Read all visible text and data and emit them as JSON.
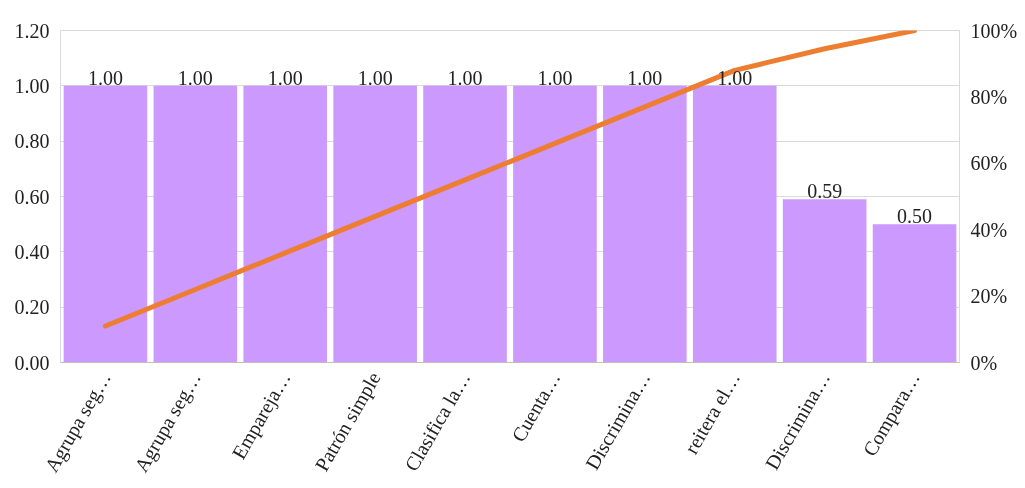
{
  "chart_data": {
    "type": "bar",
    "categories": [
      "Agrupa seg…",
      "Agrupa seg…",
      "Empareja…",
      "Patrón simple",
      "Clasifica la…",
      "Cuenta…",
      "Discrimina…",
      "reitera el…",
      "Discrimina…",
      "Compara…"
    ],
    "series": [
      {
        "color": "#cc99ff",
        "values": [
          1.0,
          1.0,
          1.0,
          1.0,
          1.0,
          1.0,
          1.0,
          1.0,
          0.59,
          0.5
        ],
        "value_labels": [
          "1.00",
          "1.00",
          "1.00",
          "1.00",
          "1.00",
          "1.00",
          "1.00",
          "1.00",
          "0.59",
          "0.50"
        ]
      },
      {
        "type": "line",
        "axis": "y2",
        "color": "#ed7d31",
        "values": [
          11.0,
          22.0,
          33.0,
          44.0,
          55.0,
          66.0,
          77.0,
          88.0,
          94.5,
          100.0
        ]
      }
    ],
    "ylim": [
      0,
      1.2
    ],
    "yticks": [
      {
        "value": 0,
        "label": "0.00"
      },
      {
        "value": 0.2,
        "label": "0.20"
      },
      {
        "value": 0.4,
        "label": "0.40"
      },
      {
        "value": 0.6,
        "label": "0.60"
      },
      {
        "value": 0.8,
        "label": "0.80"
      },
      {
        "value": 1.0,
        "label": "1.00"
      },
      {
        "value": 1.2,
        "label": "1.20"
      }
    ],
    "y2lim": [
      0,
      100
    ],
    "y2ticks": [
      {
        "value": 0,
        "label": "0%"
      },
      {
        "value": 20,
        "label": "20%"
      },
      {
        "value": 40,
        "label": "40%"
      },
      {
        "value": 60,
        "label": "60%"
      },
      {
        "value": 80,
        "label": "80%"
      },
      {
        "value": 100,
        "label": "100%"
      }
    ],
    "grid": "y",
    "marker": "none",
    "line_style": "solid"
  }
}
